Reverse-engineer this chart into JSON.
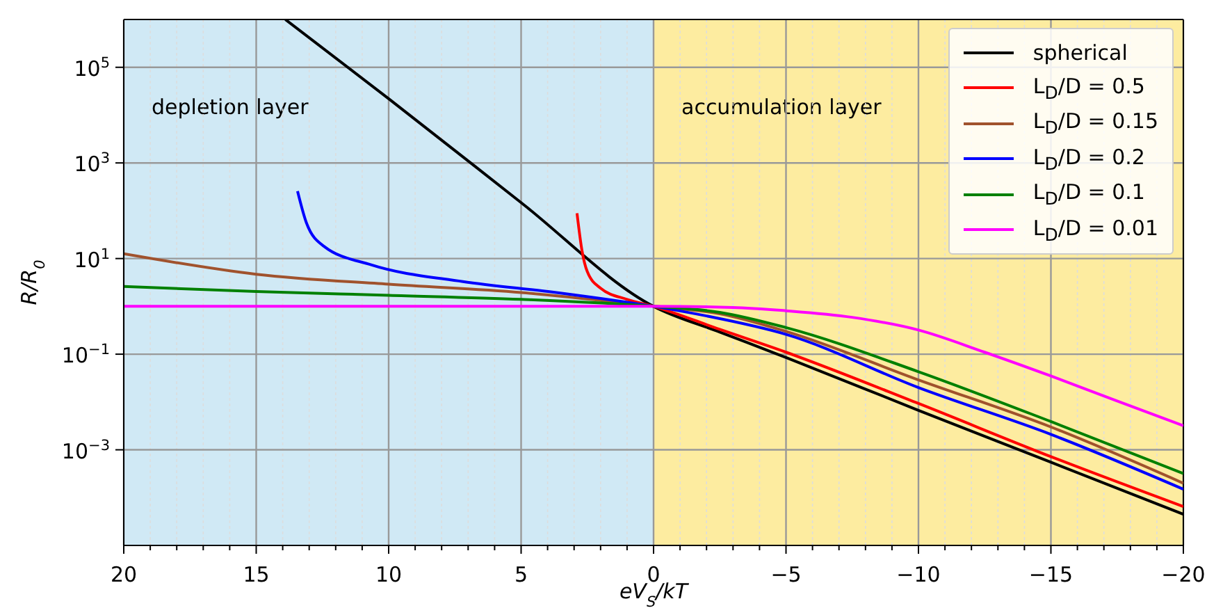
{
  "chart_data": {
    "type": "line",
    "xlabel": "eV$_{S}$/kT",
    "ylabel": "R/R$_{0}$",
    "log": "y",
    "xlim": [
      20,
      -20
    ],
    "ylim": [
      1e-05,
      1000000
    ],
    "xticks": [
      {
        "value": 20,
        "label": "20"
      },
      {
        "value": 19,
        "label": null
      },
      {
        "value": 18,
        "label": null
      },
      {
        "value": 17,
        "label": null
      },
      {
        "value": 16,
        "label": null
      },
      {
        "value": 15,
        "label": "15"
      },
      {
        "value": 14,
        "label": null
      },
      {
        "value": 13,
        "label": null
      },
      {
        "value": 12,
        "label": null
      },
      {
        "value": 11,
        "label": null
      },
      {
        "value": 10,
        "label": "10"
      },
      {
        "value": 9,
        "label": null
      },
      {
        "value": 8,
        "label": null
      },
      {
        "value": 7,
        "label": null
      },
      {
        "value": 6,
        "label": null
      },
      {
        "value": 5,
        "label": "5"
      },
      {
        "value": 4,
        "label": null
      },
      {
        "value": 3,
        "label": null
      },
      {
        "value": 2,
        "label": null
      },
      {
        "value": 1,
        "label": null
      },
      {
        "value": 0,
        "label": "0"
      },
      {
        "value": -1,
        "label": null
      },
      {
        "value": -2,
        "label": null
      },
      {
        "value": -3,
        "label": null
      },
      {
        "value": -4,
        "label": null
      },
      {
        "value": -5,
        "label": "−5"
      },
      {
        "value": -6,
        "label": null
      },
      {
        "value": -7,
        "label": null
      },
      {
        "value": -8,
        "label": null
      },
      {
        "value": -9,
        "label": null
      },
      {
        "value": -10,
        "label": "−10"
      },
      {
        "value": -11,
        "label": null
      },
      {
        "value": -12,
        "label": null
      },
      {
        "value": -13,
        "label": null
      },
      {
        "value": -14,
        "label": null
      },
      {
        "value": -15,
        "label": "−15"
      },
      {
        "value": -16,
        "label": null
      },
      {
        "value": -17,
        "label": null
      },
      {
        "value": -18,
        "label": null
      },
      {
        "value": -19,
        "label": null
      },
      {
        "value": -20,
        "label": "−20"
      }
    ],
    "yticks": [
      {
        "value": 0.001,
        "label": "10$^{−3}$"
      },
      {
        "value": 0.1,
        "label": "10$^{−1}$"
      },
      {
        "value": 10,
        "label": "10$^{1}$"
      },
      {
        "value": 1000,
        "label": "10$^{3}$"
      },
      {
        "value": 100000,
        "label": "10$^{5}$"
      }
    ],
    "grid": true,
    "legend": "top right",
    "marker": "none",
    "line_style": "solid",
    "bands": [
      {
        "axis": "x",
        "from": 20,
        "to": 0,
        "label": "depletion layer",
        "color": "#d0e9f5"
      },
      {
        "axis": "x",
        "from": 0,
        "to": -20,
        "label": "accumulation layer",
        "color": "#fdeca0"
      }
    ],
    "series": [
      {
        "name": "spherical",
        "color": "#000000",
        "x": [
          13.9,
          10,
          5,
          0,
          -2.5,
          -5,
          -10,
          -15,
          -20
        ],
        "values": [
          1000000,
          22000,
          148,
          1,
          0.29,
          0.085,
          0.0067,
          0.00055,
          4.5e-05
        ]
      },
      {
        "name": "L$_{D}$/D = 0.5",
        "color": "#ff0000",
        "x": [
          2.89,
          2.7,
          2.5,
          2,
          1,
          0,
          -2.5,
          -5,
          -10,
          -15,
          -20
        ],
        "values": [
          89,
          14.5,
          5.3,
          2.4,
          1.4,
          1,
          0.33,
          0.11,
          0.0093,
          0.00072,
          6.5e-05
        ]
      },
      {
        "name": "L$_{D}$/D = 0.15",
        "color": "#a0522d",
        "x": [
          20,
          15,
          10,
          5,
          0,
          -2.5,
          -5,
          -10,
          -15,
          -20
        ],
        "values": [
          12.6,
          4.7,
          2.9,
          1.95,
          1,
          0.7,
          0.3,
          0.029,
          0.003,
          0.0002
        ]
      },
      {
        "name": "L$_{D}$/D = 0.2",
        "color": "#0000ff",
        "x": [
          13.44,
          13.1,
          12.44,
          10.66,
          7.2,
          3.67,
          0,
          -2,
          -5,
          -10,
          -15,
          -20
        ],
        "values": [
          257,
          55,
          18,
          7.4,
          3.3,
          1.95,
          1,
          0.63,
          0.26,
          0.02,
          0.0021,
          0.00015
        ]
      },
      {
        "name": "L$_{D}$/D = 0.1",
        "color": "#008000",
        "x": [
          20,
          15,
          10,
          5,
          0,
          -2.5,
          -5,
          -10,
          -15,
          -20
        ],
        "values": [
          2.6,
          2.05,
          1.7,
          1.4,
          1,
          0.75,
          0.36,
          0.043,
          0.0039,
          0.00032
        ]
      },
      {
        "name": "L$_{D}$/D = 0.01",
        "color": "#ff00ff",
        "x": [
          20,
          10,
          0,
          -3,
          -5,
          -7.5,
          -10,
          -12.5,
          -15,
          -17.5,
          -20
        ],
        "values": [
          1,
          1,
          1,
          0.95,
          0.81,
          0.59,
          0.32,
          0.11,
          0.035,
          0.0105,
          0.0032
        ]
      }
    ]
  }
}
